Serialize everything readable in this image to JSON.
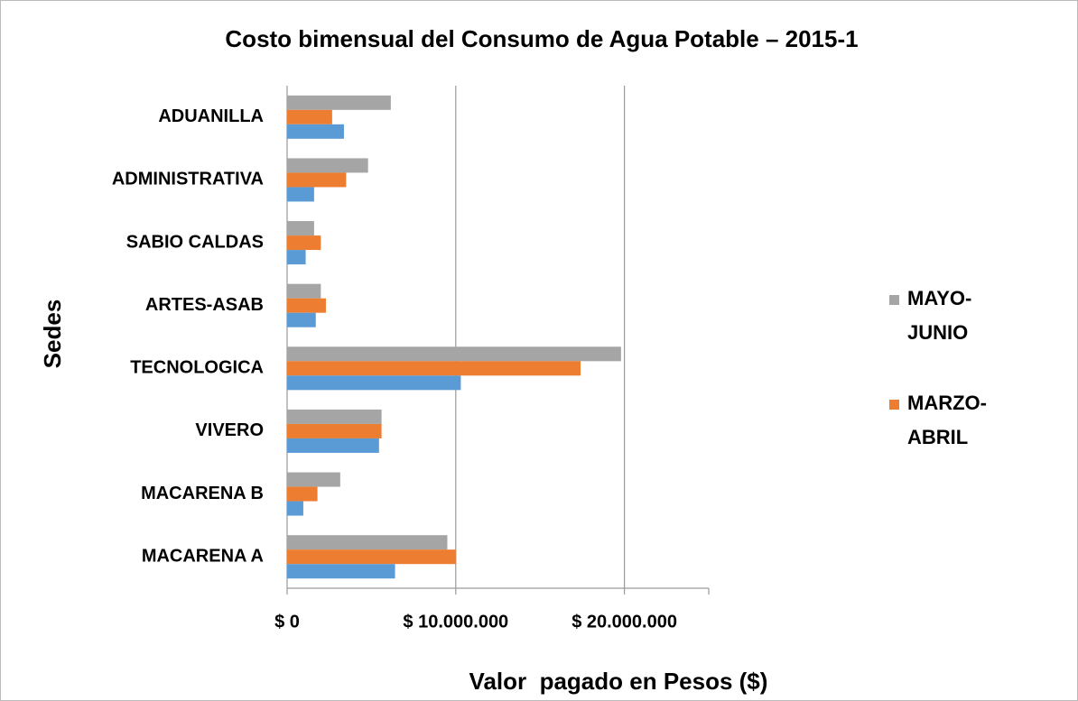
{
  "chart_data": {
    "type": "bar",
    "orientation": "horizontal",
    "title": "Costo bimensual del Consumo de Agua Potable – 2015-1",
    "xlabel": "Valor  pagado en Pesos ($)",
    "ylabel": "Sedes",
    "categories": [
      "ADUANILLA",
      "ADMINISTRATIVA",
      "SABIO CALDAS",
      "ARTES-ASAB",
      "TECNOLOGICA",
      "VIVERO",
      "MACARENA B",
      "MACARENA A"
    ],
    "series": [
      {
        "name": "MAYO-JUNIO",
        "color": "#a5a5a5",
        "values": [
          6150000,
          4800000,
          1600000,
          2000000,
          19800000,
          5600000,
          3150000,
          9500000
        ]
      },
      {
        "name": "MARZO-ABRIL",
        "color": "#ed7d31",
        "values": [
          2670000,
          3500000,
          2000000,
          2300000,
          17400000,
          5600000,
          1800000,
          10000000
        ]
      },
      {
        "color": "#5b9bd5",
        "values": [
          3370000,
          1600000,
          1100000,
          1700000,
          10300000,
          5450000,
          960000,
          6400000
        ]
      }
    ],
    "xlim": [
      0,
      25000000
    ],
    "xticks": [
      {
        "value": 0,
        "label": "$ 0"
      },
      {
        "value": 10000000,
        "label": "$ 10.000.000"
      },
      {
        "value": 20000000,
        "label": "$ 20.000.000"
      }
    ],
    "grid": true,
    "legend": "right"
  }
}
